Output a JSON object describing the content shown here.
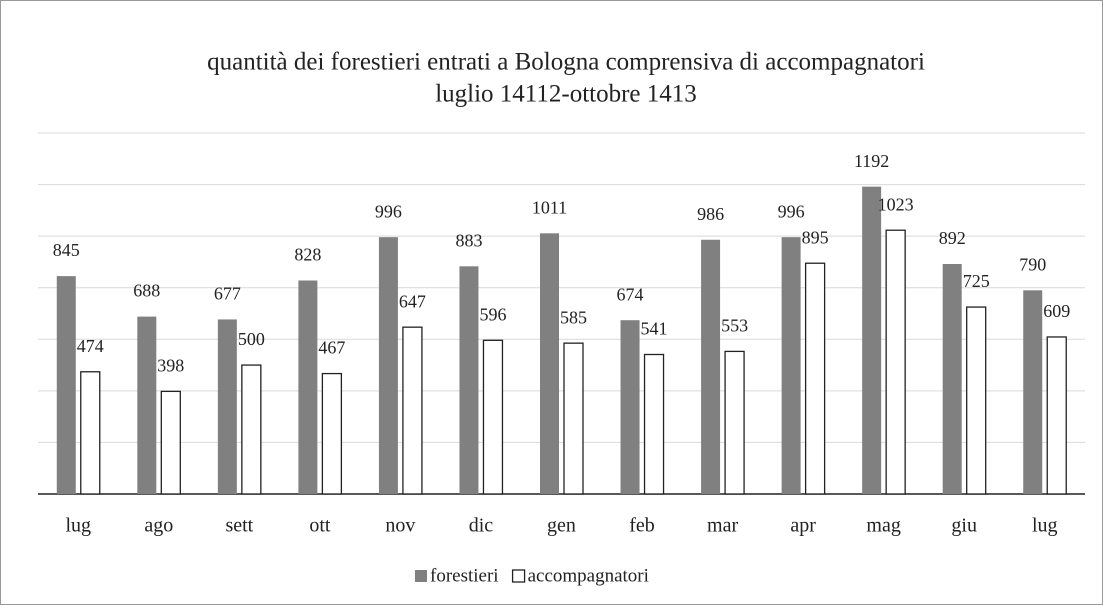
{
  "chart_data": {
    "type": "bar",
    "title": [
      "quantità dei forestieri entrati a Bologna comprensiva di accompagnatori",
      "luglio 14112-ottobre 1413"
    ],
    "categories": [
      "lug",
      "ago",
      "sett",
      "ott",
      "nov",
      "dic",
      "gen",
      "feb",
      "mar",
      "apr",
      "mag",
      "giu",
      "lug"
    ],
    "series": [
      {
        "name": "forestieri",
        "color": "#808080",
        "values": [
          845,
          688,
          677,
          828,
          996,
          883,
          1011,
          674,
          986,
          996,
          1192,
          892,
          790
        ]
      },
      {
        "name": "accompagnatori",
        "color": "#ffffff",
        "values": [
          474,
          398,
          500,
          467,
          647,
          596,
          585,
          541,
          553,
          895,
          1023,
          725,
          609
        ]
      }
    ],
    "ylim": [
      0,
      1400
    ],
    "yticks": [
      0,
      200,
      400,
      600,
      800,
      1000,
      1200,
      1400
    ],
    "grid": true,
    "legend": "bottom"
  }
}
